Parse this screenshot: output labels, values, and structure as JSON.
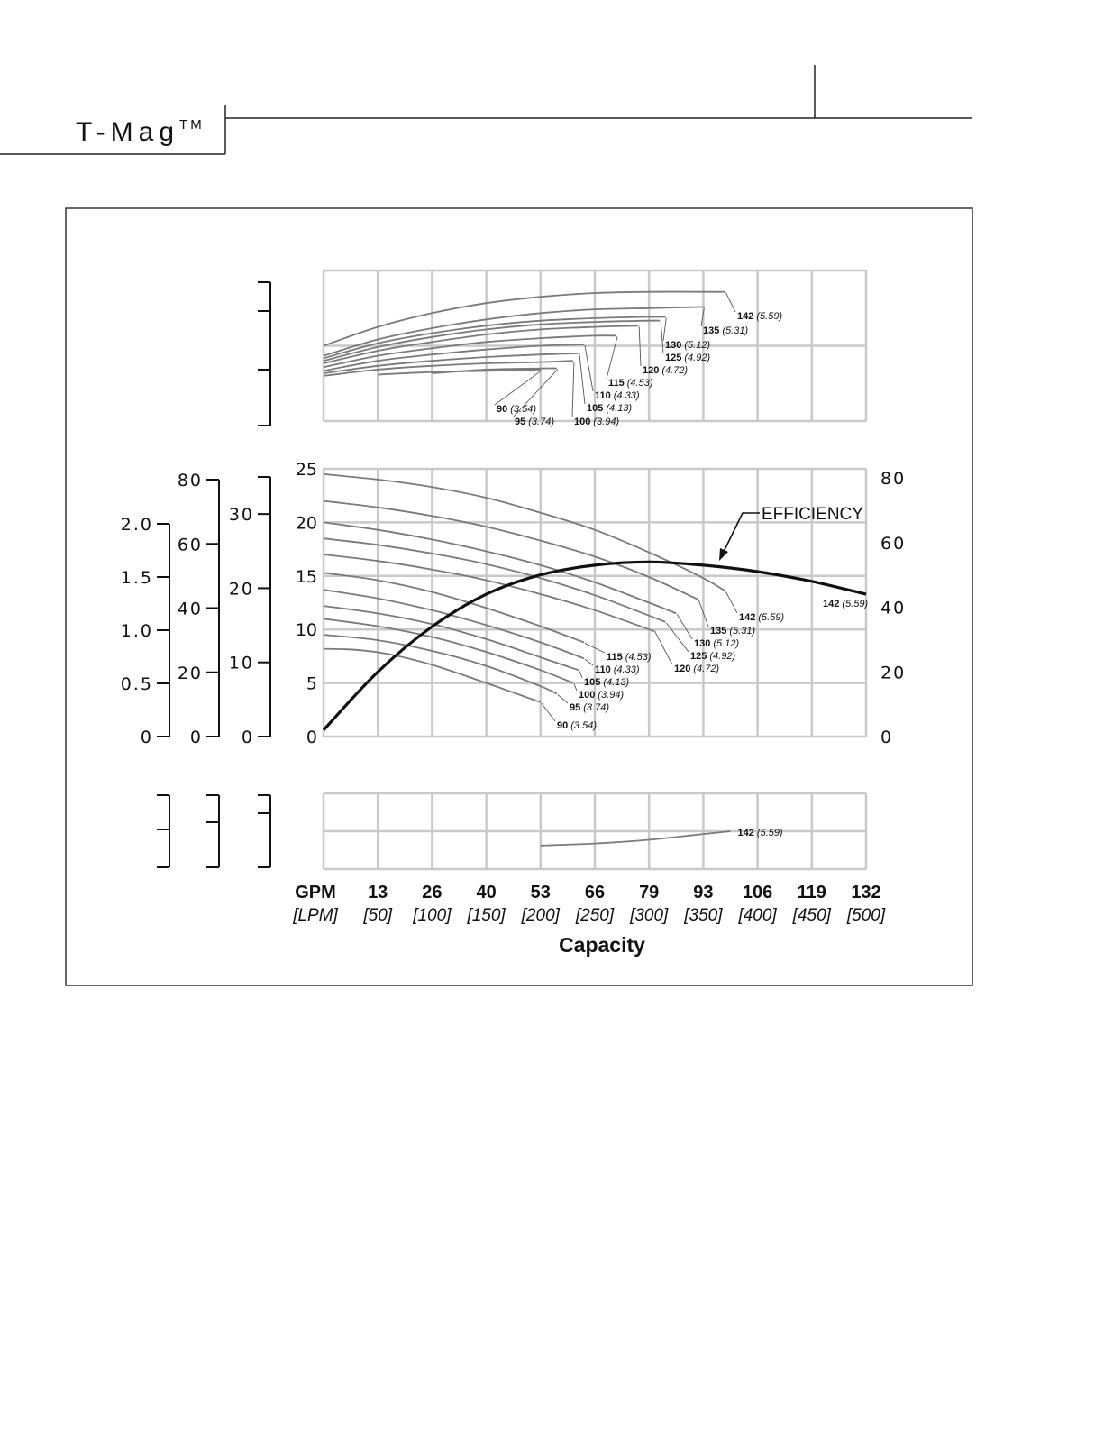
{
  "header": {
    "brand": "T-Mag",
    "trademark": "TM"
  },
  "colors": {
    "grid": "#c9c9c9",
    "curve": "#7a7a7a",
    "efficiency": "#111111",
    "frame": "#333333"
  },
  "chart_data": {
    "type": "line",
    "xlabel": "Capacity",
    "x_unit_primary": "GPM",
    "x_unit_secondary": "[LPM]",
    "x_ticks_gpm": [
      "13",
      "26",
      "40",
      "53",
      "66",
      "79",
      "93",
      "106",
      "119",
      "132"
    ],
    "x_ticks_lpm": [
      "[50]",
      "[100]",
      "[150]",
      "[200]",
      "[250]",
      "[300]",
      "[350]",
      "[400]",
      "[450]",
      "[500]"
    ],
    "xlim_lpm": [
      0,
      500
    ],
    "grid": true,
    "head_panel": {
      "ylim": [
        0,
        25
      ],
      "y_ticks": [
        "0",
        "5",
        "10",
        "15",
        "20",
        "25"
      ],
      "left_scales": [
        {
          "ticks": [
            "0",
            "10",
            "20",
            "30"
          ],
          "values": [
            0,
            10,
            20,
            30
          ]
        },
        {
          "ticks": [
            "0",
            "20",
            "40",
            "60",
            "80"
          ],
          "values": [
            0,
            20,
            40,
            60,
            80
          ]
        },
        {
          "ticks": [
            "0",
            "0.5",
            "1.0",
            "1.5",
            "2.0"
          ],
          "values": [
            0,
            0.5,
            1.0,
            1.5,
            2.0
          ]
        }
      ],
      "right_scale": {
        "ylim": [
          0,
          80
        ],
        "ticks": [
          "0",
          "20",
          "40",
          "60",
          "80"
        ]
      },
      "series": [
        {
          "name": "90",
          "sub": "(3.54)",
          "x": [
            0,
            30,
            60,
            100,
            150,
            200
          ],
          "y": [
            8.2,
            8.1,
            7.7,
            6.7,
            5.0,
            3.2
          ]
        },
        {
          "name": "95",
          "sub": "(3.74)",
          "x": [
            0,
            50,
            100,
            150,
            200,
            215
          ],
          "y": [
            9.5,
            9.0,
            8.0,
            6.6,
            4.7,
            4.0
          ]
        },
        {
          "name": "100",
          "sub": "(3.94)",
          "x": [
            0,
            50,
            100,
            150,
            200,
            230
          ],
          "y": [
            11.0,
            10.3,
            9.3,
            7.9,
            6.2,
            5.0
          ]
        },
        {
          "name": "105",
          "sub": "(4.13)",
          "x": [
            0,
            50,
            100,
            150,
            200,
            235
          ],
          "y": [
            12.2,
            11.5,
            10.5,
            9.1,
            7.4,
            6.2
          ]
        },
        {
          "name": "110",
          "sub": "(4.33)",
          "x": [
            0,
            50,
            100,
            150,
            200,
            240
          ],
          "y": [
            13.7,
            12.9,
            11.8,
            10.4,
            8.8,
            7.3
          ]
        },
        {
          "name": "115",
          "sub": "(4.53)",
          "x": [
            0,
            50,
            100,
            150,
            200,
            240
          ],
          "y": [
            15.3,
            14.6,
            13.5,
            12.0,
            10.3,
            8.8
          ]
        },
        {
          "name": "120",
          "sub": "(4.72)",
          "x": [
            0,
            50,
            100,
            150,
            200,
            250,
            300,
            305
          ],
          "y": [
            17.0,
            16.4,
            15.6,
            14.6,
            13.3,
            11.8,
            10.0,
            9.8
          ]
        },
        {
          "name": "125",
          "sub": "(4.92)",
          "x": [
            0,
            50,
            100,
            150,
            200,
            250,
            300,
            315
          ],
          "y": [
            18.5,
            17.9,
            17.1,
            16.1,
            14.8,
            13.2,
            11.3,
            10.7
          ]
        },
        {
          "name": "130",
          "sub": "(5.12)",
          "x": [
            0,
            50,
            100,
            150,
            200,
            250,
            300,
            325
          ],
          "y": [
            20.0,
            19.3,
            18.4,
            17.3,
            16.0,
            14.4,
            12.5,
            11.5
          ]
        },
        {
          "name": "135",
          "sub": "(5.31)",
          "x": [
            0,
            50,
            100,
            150,
            200,
            250,
            300,
            345
          ],
          "y": [
            22.0,
            21.4,
            20.6,
            19.6,
            18.3,
            16.8,
            14.9,
            12.8
          ]
        },
        {
          "name": "142",
          "sub": "(5.59)",
          "x": [
            0,
            50,
            100,
            150,
            200,
            250,
            300,
            350,
            370
          ],
          "y": [
            24.5,
            24.0,
            23.3,
            22.3,
            20.9,
            19.3,
            17.2,
            14.8,
            13.6
          ]
        }
      ],
      "efficiency": {
        "label": "EFFICIENCY",
        "end_label_name": "142",
        "end_label_sub": "(5.59)",
        "x": [
          0,
          50,
          100,
          150,
          200,
          250,
          300,
          350,
          400,
          450,
          500
        ],
        "y": [
          2,
          20,
          34,
          44,
          50,
          53,
          54,
          53,
          51,
          48,
          44
        ]
      }
    },
    "top_panel": {
      "series": [
        {
          "name": "90",
          "sub": "(3.54)",
          "x": [
            50,
            100,
            150,
            200
          ],
          "y": [
            0.37,
            0.39,
            0.4,
            0.41
          ]
        },
        {
          "name": "95",
          "sub": "(3.74)",
          "x": [
            100,
            150,
            200,
            215
          ],
          "y": [
            0.38,
            0.41,
            0.42,
            0.42
          ]
        },
        {
          "name": "100",
          "sub": "(3.94)",
          "x": [
            0,
            50,
            100,
            150,
            200,
            230
          ],
          "y": [
            0.36,
            0.41,
            0.44,
            0.46,
            0.47,
            0.48
          ]
        },
        {
          "name": "105",
          "sub": "(4.13)",
          "x": [
            0,
            50,
            100,
            150,
            200,
            235
          ],
          "y": [
            0.38,
            0.44,
            0.48,
            0.51,
            0.53,
            0.54
          ]
        },
        {
          "name": "110",
          "sub": "(4.33)",
          "x": [
            0,
            50,
            100,
            150,
            200,
            240
          ],
          "y": [
            0.4,
            0.48,
            0.53,
            0.57,
            0.6,
            0.61
          ]
        },
        {
          "name": "115",
          "sub": "(4.53)",
          "x": [
            0,
            50,
            100,
            150,
            200,
            250,
            270
          ],
          "y": [
            0.43,
            0.52,
            0.58,
            0.63,
            0.66,
            0.68,
            0.68
          ]
        },
        {
          "name": "120",
          "sub": "(4.72)",
          "x": [
            0,
            50,
            100,
            150,
            200,
            250,
            290
          ],
          "y": [
            0.46,
            0.56,
            0.63,
            0.69,
            0.73,
            0.75,
            0.76
          ]
        },
        {
          "name": "125",
          "sub": "(4.92)",
          "x": [
            0,
            50,
            100,
            150,
            200,
            250,
            300,
            310
          ],
          "y": [
            0.48,
            0.59,
            0.67,
            0.73,
            0.77,
            0.79,
            0.8,
            0.8
          ]
        },
        {
          "name": "130",
          "sub": "(5.12)",
          "x": [
            0,
            50,
            100,
            150,
            200,
            250,
            300,
            315
          ],
          "y": [
            0.5,
            0.62,
            0.7,
            0.76,
            0.8,
            0.82,
            0.83,
            0.83
          ]
        },
        {
          "name": "135",
          "sub": "(5.31)",
          "x": [
            0,
            50,
            100,
            150,
            200,
            250,
            300,
            350
          ],
          "y": [
            0.52,
            0.65,
            0.74,
            0.81,
            0.86,
            0.89,
            0.9,
            0.91
          ]
        },
        {
          "name": "142",
          "sub": "(5.59)",
          "x": [
            0,
            50,
            100,
            150,
            200,
            250,
            300,
            350,
            370
          ],
          "y": [
            0.6,
            0.75,
            0.86,
            0.94,
            0.99,
            1.02,
            1.03,
            1.03,
            1.03
          ]
        }
      ]
    },
    "bottom_panel": {
      "series": [
        {
          "name": "142",
          "sub": "(5.59)",
          "x": [
            200,
            250,
            300,
            350,
            375
          ],
          "y": [
            0.25,
            0.27,
            0.31,
            0.37,
            0.4
          ]
        }
      ]
    }
  }
}
